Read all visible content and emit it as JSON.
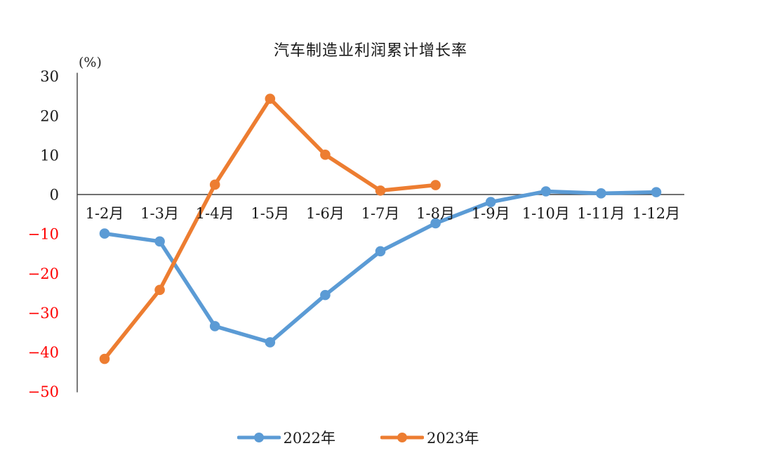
{
  "chart_data": {
    "type": "line",
    "title": "汽车制造业利润累计增长率",
    "unit_label": "(%)",
    "categories": [
      "1-2月",
      "1-3月",
      "1-4月",
      "1-5月",
      "1-6月",
      "1-7月",
      "1-8月",
      "1-9月",
      "1-10月",
      "1-11月",
      "1-12月"
    ],
    "series": [
      {
        "name": "2022年",
        "color": "#5B9BD5",
        "values": [
          -9.9,
          -11.9,
          -33.4,
          -37.5,
          -25.5,
          -14.4,
          -7.3,
          -1.9,
          0.8,
          0.3,
          0.6
        ]
      },
      {
        "name": "2023年",
        "color": "#ED7D31",
        "values": [
          -41.7,
          -24.2,
          2.5,
          24.3,
          10.1,
          1.0,
          2.4
        ]
      }
    ],
    "y_ticks": [
      30,
      20,
      10,
      0,
      -10,
      -20,
      -30,
      -40,
      -50
    ],
    "ylim": [
      -50,
      30
    ],
    "xlabel": "",
    "ylabel": "(%)",
    "grid": false,
    "legend_position": "bottom",
    "x_labels_position": "below-zero-line",
    "tick_color": "#1a1a1a",
    "negative_tick_color": "#FF0000",
    "axis_color": "#404040"
  }
}
